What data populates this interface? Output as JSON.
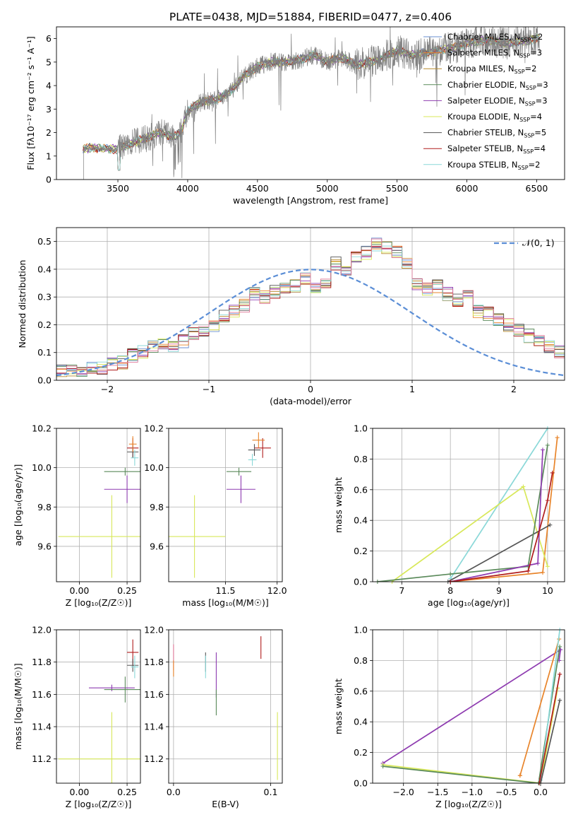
{
  "title": "PLATE=0438, MJD=51884, FIBERID=0477, z=0.406",
  "colors": {
    "Chabrier MILES": "#6a8fd0",
    "Salpeter MILES": "#e8842a",
    "Kroupa MILES": "#b78a2c",
    "Chabrier ELODIE": "#5a8a5a",
    "Salpeter ELODIE": "#8e3bb0",
    "Kroupa ELODIE": "#d8e85a",
    "Chabrier STELIB": "#555555",
    "Salpeter STELIB": "#b01c1c",
    "Kroupa STELIB": "#8ad8d8",
    "data": "#808080",
    "gaussian": "#5b8ed6",
    "pink": "#e07a9a"
  },
  "chart_data": [
    {
      "type": "line",
      "xlabel": "wavelength [Angstrom, rest frame]",
      "ylabel": "Flux [fλ10⁻¹⁷ erg cm⁻² s⁻¹ A⁻¹]",
      "xlim": [
        3060,
        6700
      ],
      "ylim": [
        0,
        6.5
      ],
      "xticks": [
        "3500",
        "4000",
        "4500",
        "5000",
        "5500",
        "6000",
        "6500"
      ],
      "yticks": [
        "0",
        "1",
        "2",
        "3",
        "4",
        "5",
        "6"
      ],
      "grid": false,
      "legend_position": "top-right",
      "legend": [
        "Chabrier MILES, N_SSP=2",
        "Salpeter MILES, N_SSP=3",
        "Kroupa MILES, N_SSP=2",
        "Chabrier ELODIE, N_SSP=3",
        "Salpeter ELODIE, N_SSP=3",
        "Kroupa ELODIE, N_SSP=4",
        "Chabrier STELIB, N_SSP=5",
        "Salpeter STELIB, N_SSP=4",
        "Kroupa STELIB, N_SSP=2"
      ],
      "continuum": {
        "x": [
          3250,
          3300,
          3400,
          3500,
          3600,
          3700,
          3800,
          3900,
          3950,
          4000,
          4100,
          4200,
          4300,
          4400,
          4500,
          4600,
          4700,
          4800,
          4900,
          5000,
          5100,
          5200,
          5300,
          5400,
          5500,
          5600,
          5700,
          5800,
          5900,
          6000,
          6100,
          6200,
          6300,
          6400,
          6500
        ],
        "y": [
          1.3,
          1.35,
          1.3,
          1.3,
          1.55,
          1.75,
          2.0,
          1.8,
          2.0,
          2.9,
          3.3,
          3.4,
          3.7,
          4.4,
          4.8,
          5.0,
          5.0,
          5.1,
          5.3,
          5.0,
          5.2,
          4.9,
          5.0,
          5.2,
          5.5,
          5.3,
          5.4,
          5.5,
          5.6,
          5.8,
          5.9,
          5.9,
          5.8,
          5.9,
          6.0
        ]
      }
    },
    {
      "type": "bar",
      "xlabel": "(data-model)/error",
      "ylabel": "Normed distribution",
      "xlim": [
        -2.5,
        2.5
      ],
      "ylim": [
        0,
        0.55
      ],
      "xticks": [
        "−2",
        "−1",
        "0",
        "1",
        "2"
      ],
      "yticks": [
        "0.0",
        "0.1",
        "0.2",
        "0.3",
        "0.4",
        "0.5"
      ],
      "grid": true,
      "legend": [
        "𝒩(0, 1)"
      ],
      "legend_position": "top-right",
      "bin_width": 0.1,
      "bin_start": -2.5,
      "histogram": [
        0.032,
        0.03,
        0.035,
        0.04,
        0.045,
        0.06,
        0.065,
        0.09,
        0.1,
        0.12,
        0.13,
        0.12,
        0.14,
        0.17,
        0.18,
        0.2,
        0.23,
        0.25,
        0.27,
        0.31,
        0.3,
        0.32,
        0.33,
        0.34,
        0.37,
        0.33,
        0.35,
        0.42,
        0.4,
        0.44,
        0.46,
        0.49,
        0.48,
        0.46,
        0.42,
        0.35,
        0.33,
        0.34,
        0.31,
        0.29,
        0.3,
        0.25,
        0.24,
        0.22,
        0.2,
        0.18,
        0.16,
        0.14,
        0.12,
        0.1
      ],
      "gaussian": "N(0,1)"
    },
    {
      "type": "scatter",
      "xlabel": "Z [log₁₀(Z/Z☉)]",
      "ylabel": "age  [log₁₀(age/yr)]",
      "xlim": [
        -0.12,
        0.32
      ],
      "ylim": [
        9.42,
        10.2
      ],
      "xticks": [
        "0.00",
        "0.25"
      ],
      "yticks": [
        "9.6",
        "9.8",
        "10.0",
        "10.2"
      ],
      "grid": true,
      "points": [
        {
          "x": 0.17,
          "y": 9.65,
          "xerr": 0.28,
          "yerr": 0.21,
          "series": "Kroupa ELODIE"
        },
        {
          "x": 0.25,
          "y": 9.89,
          "xerr": 0.12,
          "yerr": 0.07,
          "series": "Salpeter ELODIE"
        },
        {
          "x": 0.24,
          "y": 9.98,
          "xerr": 0.11,
          "yerr": 0.02,
          "series": "Chabrier ELODIE"
        },
        {
          "x": 0.28,
          "y": 10.1,
          "xerr": 0.03,
          "yerr": 0.05,
          "series": "Salpeter STELIB"
        },
        {
          "x": 0.28,
          "y": 10.08,
          "xerr": 0.03,
          "yerr": 0.03,
          "series": "Chabrier STELIB"
        },
        {
          "x": 0.29,
          "y": 10.05,
          "xerr": 0.02,
          "yerr": 0.04,
          "series": "Kroupa STELIB"
        },
        {
          "x": 0.28,
          "y": 10.12,
          "xerr": 0.02,
          "yerr": 0.04,
          "series": "Salpeter MILES"
        }
      ]
    },
    {
      "type": "scatter",
      "xlabel": "mass [log₁₀(M/M☉)]",
      "ylabel": "",
      "xlim": [
        10.95,
        12.05
      ],
      "ylim": [
        9.42,
        10.2
      ],
      "xticks": [
        "11.5",
        "12.0"
      ],
      "yticks": [
        "9.6",
        "9.8",
        "10.0",
        "10.2"
      ],
      "grid": true,
      "points": [
        {
          "x": 11.2,
          "y": 9.65,
          "xerr": 0.3,
          "yerr": 0.21,
          "series": "Kroupa ELODIE"
        },
        {
          "x": 11.65,
          "y": 9.89,
          "xerr": 0.14,
          "yerr": 0.07,
          "series": "Salpeter ELODIE"
        },
        {
          "x": 11.63,
          "y": 9.98,
          "xerr": 0.12,
          "yerr": 0.02,
          "series": "Chabrier ELODIE"
        },
        {
          "x": 11.86,
          "y": 10.1,
          "xerr": 0.08,
          "yerr": 0.05,
          "series": "Salpeter STELIB"
        },
        {
          "x": 11.78,
          "y": 10.09,
          "xerr": 0.06,
          "yerr": 0.03,
          "series": "Chabrier STELIB"
        },
        {
          "x": 11.76,
          "y": 10.04,
          "xerr": 0.04,
          "yerr": 0.03,
          "series": "Kroupa STELIB"
        },
        {
          "x": 11.82,
          "y": 10.14,
          "xerr": 0.06,
          "yerr": 0.04,
          "series": "Salpeter MILES"
        }
      ]
    },
    {
      "type": "line",
      "xlabel": "age  [log₁₀(age/yr)]",
      "ylabel": "mass weight",
      "xlim": [
        6.4,
        10.35
      ],
      "ylim": [
        0,
        1.0
      ],
      "xticks": [
        "7",
        "8",
        "9",
        "10"
      ],
      "yticks": [
        "0.0",
        "0.2",
        "0.4",
        "0.6",
        "0.8",
        "1.0"
      ],
      "grid": true,
      "series": [
        {
          "name": "Kroupa STELIB",
          "x": [
            8.0,
            10.0
          ],
          "y": [
            0.02,
            1.0
          ]
        },
        {
          "name": "Salpeter MILES",
          "x": [
            8.0,
            9.9,
            10.2
          ],
          "y": [
            0.0,
            0.06,
            0.94
          ]
        },
        {
          "name": "Kroupa ELODIE",
          "x": [
            6.8,
            9.5,
            10.0
          ],
          "y": [
            0.0,
            0.62,
            0.1
          ]
        },
        {
          "name": "Chabrier STELIB",
          "x": [
            7.95,
            10.05
          ],
          "y": [
            0.0,
            0.37
          ]
        },
        {
          "name": "Chabrier ELODIE",
          "x": [
            6.5,
            8.0,
            9.6,
            10.0
          ],
          "y": [
            0.0,
            0.05,
            0.1,
            0.89
          ]
        },
        {
          "name": "Salpeter ELODIE",
          "x": [
            8.0,
            9.8,
            9.9
          ],
          "y": [
            0.0,
            0.12,
            0.86
          ]
        },
        {
          "name": "Salpeter STELIB",
          "x": [
            8.0,
            9.6,
            10.0,
            10.1
          ],
          "y": [
            0.0,
            0.07,
            0.53,
            0.71
          ]
        }
      ]
    },
    {
      "type": "scatter",
      "xlabel": "Z [log₁₀(Z/Z☉)]",
      "ylabel": "mass [log₁₀(M/M☉)]",
      "xlim": [
        -0.12,
        0.32
      ],
      "ylim": [
        11.05,
        12.0
      ],
      "xticks": [
        "0.00",
        "0.25"
      ],
      "yticks": [
        "11.2",
        "11.4",
        "11.6",
        "11.8",
        "12.0"
      ],
      "grid": true,
      "points": [
        {
          "x": 0.17,
          "y": 11.2,
          "xerr": 0.28,
          "yerr": 0.29,
          "series": "Kroupa ELODIE"
        },
        {
          "x": 0.17,
          "y": 11.64,
          "xerr": 0.12,
          "yerr": 0.02,
          "series": "Salpeter ELODIE"
        },
        {
          "x": 0.24,
          "y": 11.63,
          "xerr": 0.11,
          "yerr": 0.08,
          "series": "Chabrier ELODIE"
        },
        {
          "x": 0.28,
          "y": 11.86,
          "xerr": 0.03,
          "yerr": 0.08,
          "series": "Salpeter STELIB"
        },
        {
          "x": 0.28,
          "y": 11.78,
          "xerr": 0.03,
          "yerr": 0.04,
          "series": "Chabrier STELIB"
        },
        {
          "x": 0.29,
          "y": 11.77,
          "xerr": 0.02,
          "yerr": 0.07,
          "series": "Kroupa STELIB"
        }
      ]
    },
    {
      "type": "scatter",
      "xlabel": "E(B-V)",
      "ylabel": "",
      "xlim": [
        -0.005,
        0.112
      ],
      "ylim": [
        11.05,
        12.0
      ],
      "xticks": [
        "0.0",
        "0.1"
      ],
      "yticks": [
        "11.2",
        "11.4",
        "11.6",
        "11.8",
        "12.0"
      ],
      "grid": true,
      "points": [
        {
          "x": 0.0,
          "y": 11.83,
          "yerr": 0.08,
          "series": "pink"
        },
        {
          "x": 0.0,
          "y": 11.76,
          "yerr": 0.05,
          "series": "Salpeter MILES"
        },
        {
          "x": 0.033,
          "y": 11.8,
          "yerr": 0.06,
          "series": "Chabrier STELIB"
        },
        {
          "x": 0.033,
          "y": 11.77,
          "yerr": 0.07,
          "series": "Kroupa STELIB"
        },
        {
          "x": 0.044,
          "y": 11.72,
          "yerr": 0.14,
          "series": "Salpeter ELODIE"
        },
        {
          "x": 0.044,
          "y": 11.55,
          "yerr": 0.08,
          "series": "Chabrier ELODIE"
        },
        {
          "x": 0.09,
          "y": 11.89,
          "yerr": 0.07,
          "series": "Salpeter STELIB"
        },
        {
          "x": 0.107,
          "y": 11.28,
          "yerr": 0.21,
          "series": "Kroupa ELODIE"
        }
      ]
    },
    {
      "type": "line",
      "xlabel": "Z [log₁₀(Z/Z☉)]",
      "ylabel": "mass weight",
      "xlim": [
        -2.45,
        0.35
      ],
      "ylim": [
        0,
        1.0
      ],
      "xticks": [
        "−2.0",
        "−1.5",
        "−1.0",
        "−0.5",
        "0.0"
      ],
      "yticks": [
        "0.0",
        "0.2",
        "0.4",
        "0.6",
        "0.8",
        "1.0"
      ],
      "grid": true,
      "series": [
        {
          "name": "Salpeter ELODIE",
          "x": [
            -2.3,
            0.29,
            0.27
          ],
          "y": [
            0.13,
            0.87,
            0.8
          ]
        },
        {
          "name": "Kroupa ELODIE",
          "x": [
            -2.3,
            0.0,
            0.25
          ],
          "y": [
            0.12,
            0.0,
            0.62
          ]
        },
        {
          "name": "Chabrier ELODIE",
          "x": [
            -2.3,
            -0.03,
            0.28
          ],
          "y": [
            0.11,
            0.0,
            0.89
          ]
        },
        {
          "name": "Salpeter MILES",
          "x": [
            -0.3,
            -0.3,
            0.27
          ],
          "y": [
            0.05,
            0.05,
            0.94
          ]
        },
        {
          "name": "Kroupa STELIB",
          "x": [
            0.0,
            0.28
          ],
          "y": [
            0.02,
            1.0
          ]
        },
        {
          "name": "Chabrier STELIB",
          "x": [
            0.0,
            0.28
          ],
          "y": [
            0.0,
            0.54
          ]
        },
        {
          "name": "Salpeter STELIB",
          "x": [
            -0.02,
            0.28
          ],
          "y": [
            0.0,
            0.71
          ]
        }
      ]
    }
  ]
}
